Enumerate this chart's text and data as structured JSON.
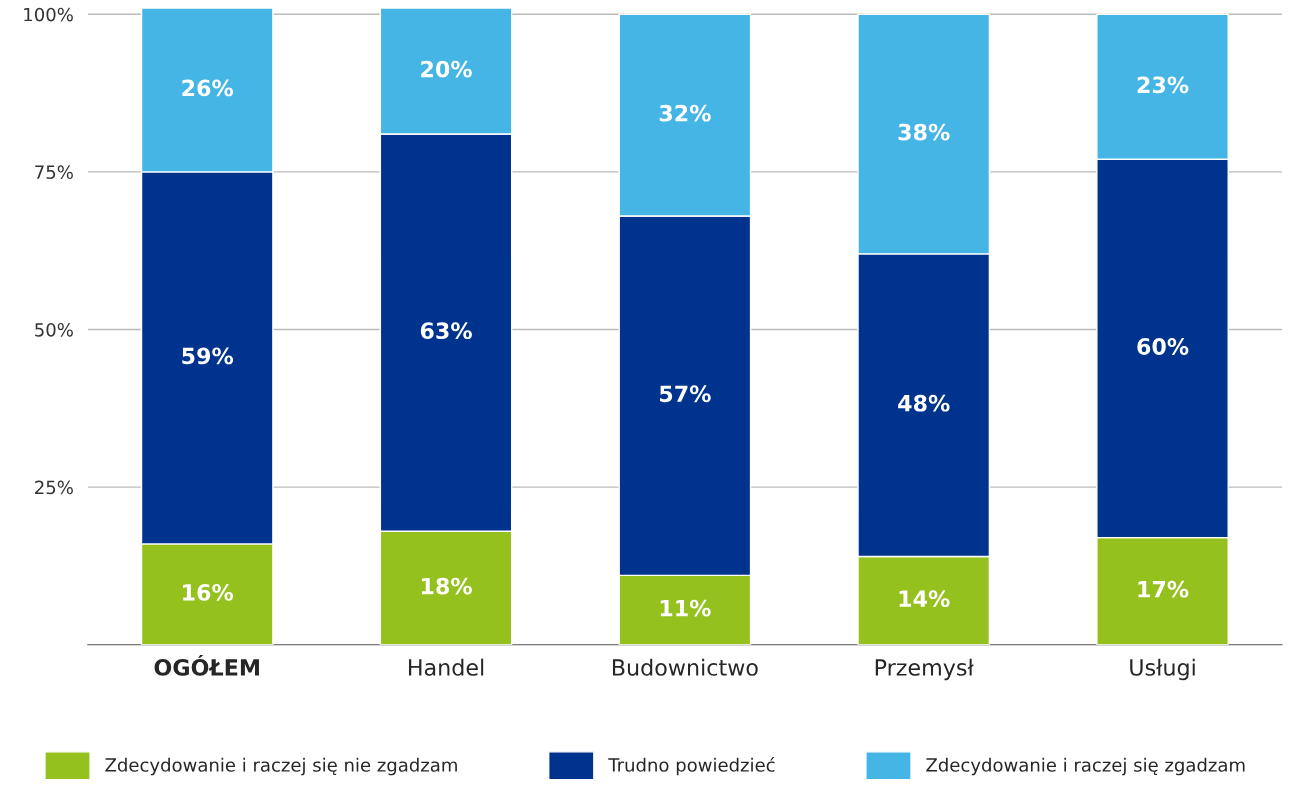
{
  "chart_data": {
    "type": "bar",
    "stacked": true,
    "categories": [
      "OGÓŁEM",
      "Handel",
      "Budownictwo",
      "Przemysł",
      "Usługi"
    ],
    "series": [
      {
        "name": "Zdecydowanie i raczej się nie zgadzam",
        "color": "#95c11f",
        "values": [
          16,
          18,
          11,
          14,
          17
        ],
        "value_labels": [
          "16%",
          "18%",
          "11%",
          "14%",
          "17%"
        ]
      },
      {
        "name": "Trudno powiedzieć",
        "color": "#00338d",
        "values": [
          59,
          63,
          57,
          48,
          60
        ],
        "value_labels": [
          "59%",
          "63%",
          "57%",
          "48%",
          "60%"
        ]
      },
      {
        "name": "Zdecydowanie i raczej się zgadzam",
        "color": "#45b5e6",
        "values": [
          26,
          20,
          32,
          38,
          23
        ],
        "value_labels": [
          "26%",
          "20%",
          "32%",
          "38%",
          "23%"
        ]
      }
    ],
    "ylim": [
      0,
      101
    ],
    "yticks": [
      {
        "value": 25,
        "label": "25%"
      },
      {
        "value": 50,
        "label": "50%"
      },
      {
        "value": 75,
        "label": "75%"
      },
      {
        "value": 100,
        "label": "100%"
      }
    ],
    "grid": "y",
    "legend": "bottom"
  }
}
